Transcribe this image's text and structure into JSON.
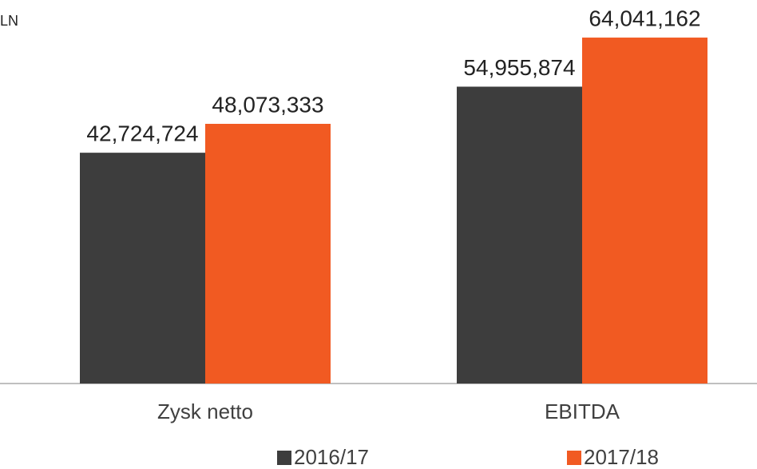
{
  "chart_data": {
    "type": "bar",
    "unit_label": "LN",
    "categories": [
      "Zysk netto",
      "EBITDA"
    ],
    "series": [
      {
        "name": "2016/17",
        "color": "#3d3d3d",
        "values": [
          42724724,
          54955874
        ],
        "value_labels": [
          "42,724,724",
          "54,955,874"
        ]
      },
      {
        "name": "2017/18",
        "color": "#f15a22",
        "values": [
          48073333,
          64041162
        ],
        "value_labels": [
          "48,073,333",
          "64,041,162"
        ]
      }
    ],
    "ylim": [
      0,
      71000000
    ],
    "legend": "bottom"
  }
}
